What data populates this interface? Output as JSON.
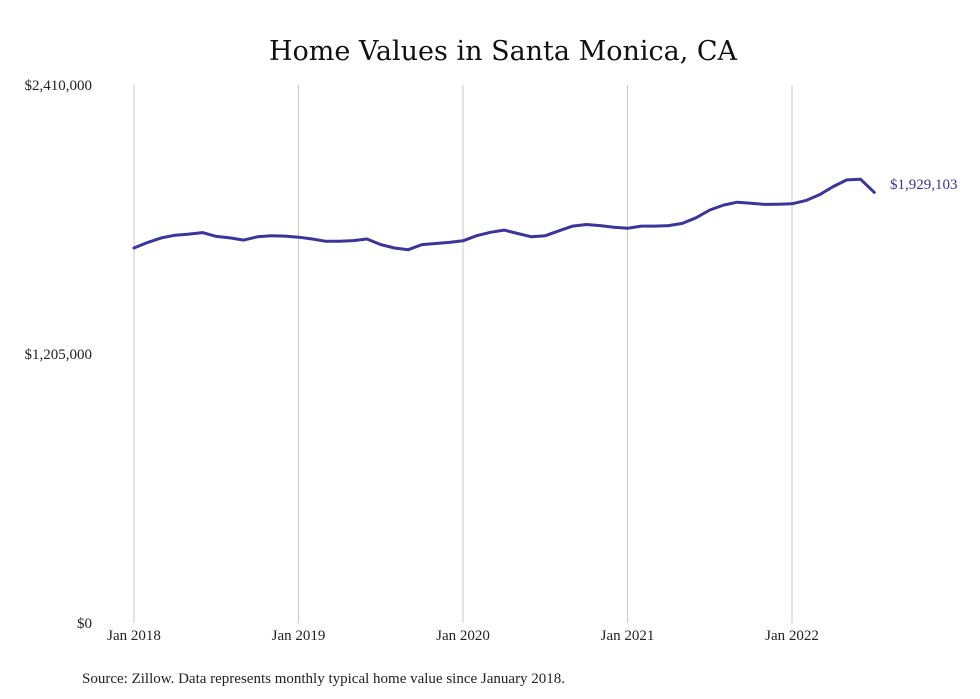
{
  "chart_data": {
    "type": "line",
    "title": "Home Values in Santa Monica, CA",
    "source": "Source: Zillow. Data represents monthly typical home value since January 2018.",
    "xlabel": "",
    "ylabel": "",
    "ylim": [
      0,
      2410000
    ],
    "y_ticks": [
      {
        "value": 0,
        "label": "$0"
      },
      {
        "value": 1205000,
        "label": "$1,205,000"
      },
      {
        "value": 2410000,
        "label": "$2,410,000"
      }
    ],
    "x_ticks": [
      {
        "date": "2018-01",
        "label": "Jan 2018"
      },
      {
        "date": "2019-01",
        "label": "Jan 2019"
      },
      {
        "date": "2020-01",
        "label": "Jan 2020"
      },
      {
        "date": "2021-01",
        "label": "Jan 2021"
      },
      {
        "date": "2022-01",
        "label": "Jan 2022"
      }
    ],
    "grid": "vertical",
    "line_color": "#3a3599",
    "end_label": "$1,929,103",
    "series": [
      {
        "x": [
          "2018-01",
          "2018-02",
          "2018-03",
          "2018-04",
          "2018-05",
          "2018-06",
          "2018-07",
          "2018-08",
          "2018-09",
          "2018-10",
          "2018-11",
          "2018-12",
          "2019-01",
          "2019-02",
          "2019-03",
          "2019-04",
          "2019-05",
          "2019-06",
          "2019-07",
          "2019-08",
          "2019-09",
          "2019-10",
          "2019-11",
          "2019-12",
          "2020-01",
          "2020-02",
          "2020-03",
          "2020-04",
          "2020-05",
          "2020-06",
          "2020-07",
          "2020-08",
          "2020-09",
          "2020-10",
          "2020-11",
          "2020-12",
          "2021-01",
          "2021-02",
          "2021-03",
          "2021-04",
          "2021-05",
          "2021-06",
          "2021-07",
          "2021-08",
          "2021-09",
          "2021-10",
          "2021-11",
          "2021-12",
          "2022-01",
          "2022-02",
          "2022-03",
          "2022-04",
          "2022-05",
          "2022-06",
          "2022-07"
        ],
        "values": [
          1680000,
          1705000,
          1725000,
          1737000,
          1742000,
          1749000,
          1732000,
          1725000,
          1715000,
          1730000,
          1735000,
          1733000,
          1728000,
          1720000,
          1710000,
          1710000,
          1713000,
          1720000,
          1695000,
          1680000,
          1672000,
          1695000,
          1700000,
          1705000,
          1712000,
          1735000,
          1750000,
          1760000,
          1745000,
          1730000,
          1735000,
          1757000,
          1778000,
          1785000,
          1780000,
          1773000,
          1768000,
          1778000,
          1778000,
          1780000,
          1790000,
          1815000,
          1850000,
          1872000,
          1885000,
          1880000,
          1875000,
          1876000,
          1878000,
          1892000,
          1918000,
          1955000,
          1985000,
          1988000,
          1929103
        ]
      }
    ]
  }
}
